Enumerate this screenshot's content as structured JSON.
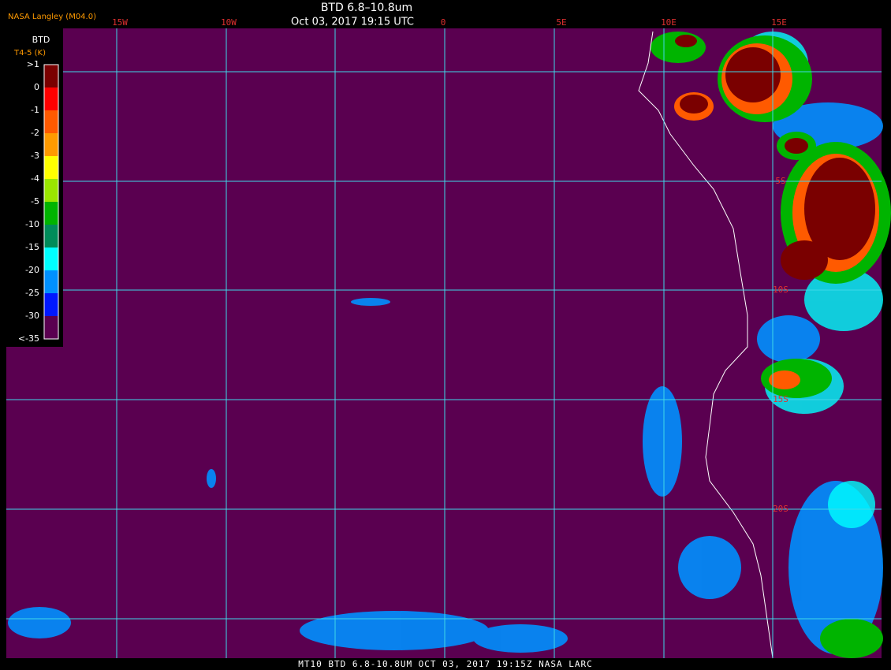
{
  "header": {
    "source": "NASA Langley (M04.0)",
    "title": "BTD 6.8–10.8um",
    "subtitle": "Oct 03, 2017 19:15 UTC"
  },
  "legend": {
    "title": "BTD",
    "unit": "T4-5 (K)",
    "labels": [
      ">1",
      "0",
      "-1",
      "-2",
      "-3",
      "-4",
      "-5",
      "-10",
      "-15",
      "-20",
      "-25",
      "-30",
      "<-35"
    ],
    "colors": [
      "#7a0000",
      "#ff0000",
      "#ff5a00",
      "#ff9a00",
      "#ffff00",
      "#9ae600",
      "#00b400",
      "#008c5a",
      "#00ffff",
      "#0090ff",
      "#0018ff",
      "#5a0050"
    ]
  },
  "map": {
    "lon_labels": [
      "15W",
      "10W",
      "0",
      "5E",
      "10E",
      "15E"
    ],
    "lat_labels": [
      "5S",
      "10S",
      "15S",
      "20S"
    ]
  },
  "footer": {
    "text": "MT10  BTD 6.8-10.8UM  OCT 03, 2017 19:15Z  NASA LARC"
  }
}
